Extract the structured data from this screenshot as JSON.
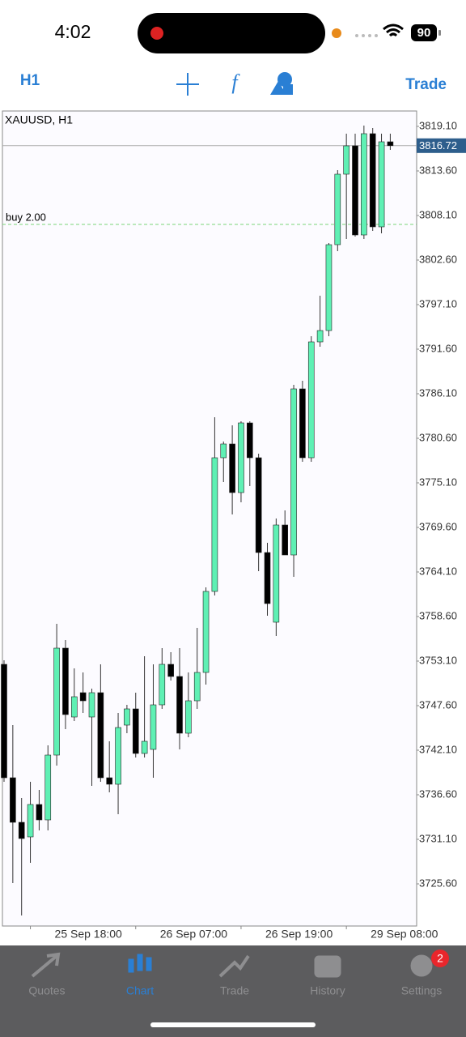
{
  "status_bar": {
    "time": "4:02",
    "battery": 90
  },
  "toolbar": {
    "timeframe": "H1",
    "trade": "Trade"
  },
  "chart_data": {
    "type": "candlestick",
    "title": "XAUUSD, H1",
    "categories": [
      null,
      null,
      null,
      "25 Sep 18:00",
      null,
      null,
      null,
      null,
      null,
      null,
      null,
      null,
      null,
      null,
      null,
      "26 Sep 07:00",
      null,
      null,
      null,
      null,
      null,
      null,
      null,
      null,
      null,
      null,
      null,
      "26 Sep 19:00",
      null,
      null,
      null,
      null,
      null,
      null,
      null,
      null,
      null,
      null,
      null,
      "29 Sep 08:00",
      null,
      null,
      null,
      null,
      null
    ],
    "open": [
      3752.7,
      3738.7,
      3733.2,
      3731.4,
      3735.4,
      3733.5,
      3741.5,
      3754.7,
      3746.2,
      3749.2,
      3746.2,
      3749.2,
      3738.7,
      3737.9,
      3745.2,
      3747.2,
      3741.7,
      3742.2,
      3747.7,
      3752.7,
      3751.2,
      3744.2,
      3748.2,
      3751.7,
      3761.7,
      3778.2,
      3779.9,
      3773.9,
      3782.5,
      3778.2,
      3766.5,
      3757.9,
      3769.9,
      3766.2,
      3786.7,
      3778.2,
      3792.5,
      3793.9,
      3804.5,
      3813.2,
      3816.7,
      3805.7,
      3818.2,
      3806.7,
      3817.2
    ],
    "high": [
      3753.2,
      3745.2,
      3736.2,
      3738.2,
      3737.2,
      3742.7,
      3757.7,
      3755.7,
      3752.2,
      3751.7,
      3749.7,
      3752.7,
      3743.2,
      3746.7,
      3747.7,
      3749.2,
      3753.7,
      3752.7,
      3754.7,
      3754.2,
      3754.7,
      3751.7,
      3757.2,
      3762.2,
      3783.2,
      3780.2,
      3782.2,
      3782.7,
      3782.7,
      3778.7,
      3767.7,
      3770.7,
      3771.7,
      3787.2,
      3787.7,
      3793.2,
      3798.2,
      3804.7,
      3813.7,
      3818.2,
      3818.2,
      3819.2,
      3818.9,
      3818.2,
      3818.2
    ],
    "low": [
      3738.2,
      3725.7,
      3721.7,
      3728.2,
      3732.2,
      3732.2,
      3740.2,
      3744.7,
      3745.7,
      3746.7,
      3737.7,
      3738.2,
      3736.9,
      3734.2,
      3744.2,
      3741.2,
      3741.2,
      3738.7,
      3747.2,
      3750.7,
      3742.2,
      3743.7,
      3747.2,
      3750.2,
      3761.2,
      3775.2,
      3771.2,
      3772.7,
      3774.7,
      3764.2,
      3758.7,
      3756.2,
      3766.2,
      3763.5,
      3777.7,
      3777.7,
      3791.9,
      3793.2,
      3803.7,
      3805.2,
      3805.5,
      3805.2,
      3806.2,
      3805.9,
      3816.2
    ],
    "close": [
      3738.7,
      3733.2,
      3731.2,
      3735.4,
      3733.5,
      3741.5,
      3754.7,
      3746.5,
      3748.7,
      3748.2,
      3749.2,
      3738.7,
      3737.9,
      3744.9,
      3747.2,
      3741.7,
      3743.2,
      3747.7,
      3752.7,
      3751.2,
      3744.2,
      3748.2,
      3751.7,
      3761.7,
      3778.2,
      3779.9,
      3773.9,
      3782.5,
      3778.2,
      3766.5,
      3760.2,
      3769.9,
      3766.2,
      3786.7,
      3778.2,
      3792.5,
      3793.9,
      3804.5,
      3813.2,
      3816.7,
      3805.7,
      3818.2,
      3806.7,
      3817.2,
      3816.72
    ],
    "up_color": "#5ff0b4",
    "down_color": "#000000",
    "ylim": [
      3720.4,
      3821.0
    ],
    "yticks": [
      {
        "value": 3819.1,
        "label": "3819.10"
      },
      {
        "value": 3813.6,
        "label": "3813.60"
      },
      {
        "value": 3808.1,
        "label": "3808.10"
      },
      {
        "value": 3802.6,
        "label": "3802.60"
      },
      {
        "value": 3797.1,
        "label": "3797.10"
      },
      {
        "value": 3791.6,
        "label": "3791.60"
      },
      {
        "value": 3786.1,
        "label": "3786.10"
      },
      {
        "value": 3780.6,
        "label": "3780.60"
      },
      {
        "value": 3775.1,
        "label": "3775.10"
      },
      {
        "value": 3769.6,
        "label": "3769.60"
      },
      {
        "value": 3764.1,
        "label": "3764.10"
      },
      {
        "value": 3758.6,
        "label": "3758.60"
      },
      {
        "value": 3753.1,
        "label": "3753.10"
      },
      {
        "value": 3747.6,
        "label": "3747.60"
      },
      {
        "value": 3742.1,
        "label": "3742.10"
      },
      {
        "value": 3736.6,
        "label": "3736.60"
      },
      {
        "value": 3731.1,
        "label": "3731.10"
      },
      {
        "value": 3725.6,
        "label": "3725.60"
      }
    ],
    "current_price": 3816.72,
    "order_line": {
      "label": "buy 2.00",
      "value": 3807.0
    }
  },
  "tab_bar": {
    "items": [
      "Quotes",
      "Chart",
      "Trade",
      "History",
      "Settings"
    ],
    "settings_badge": 2
  }
}
